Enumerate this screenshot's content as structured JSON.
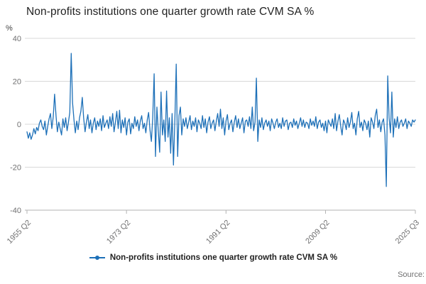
{
  "header": {
    "title": "Non-profits institutions one quarter growth rate CVM SA %",
    "unit_label": "%"
  },
  "legend": {
    "label": "Non-profits institutions one quarter growth rate CVM SA %"
  },
  "footer": {
    "source_label": "Source:"
  },
  "colors": {
    "line": "#1d70b8",
    "grid": "#d9d9d9",
    "axis": "#b3b3b3",
    "tick_text": "#707071",
    "title_text": "#222222"
  },
  "chart_data": {
    "type": "line",
    "title": "Non-profits institutions one quarter growth rate CVM SA %",
    "xlabel": "",
    "ylabel": "%",
    "ylim": [
      -40,
      40
    ],
    "y_ticks": [
      40,
      20,
      0,
      -20,
      -40
    ],
    "x_start": "1955 Q2",
    "x_end": "2025 Q3",
    "frequency": "quarterly",
    "grid": true,
    "legend_position": "bottom",
    "x_ticks": [
      {
        "label": "1955 Q2",
        "index": 0
      },
      {
        "label": "1973 Q2",
        "index": 72
      },
      {
        "label": "1991 Q2",
        "index": 144
      },
      {
        "label": "2009 Q2",
        "index": 216
      },
      {
        "label": "2025 Q3",
        "index": 281
      }
    ],
    "series": [
      {
        "name": "Non-profits institutions one quarter growth rate CVM SA %",
        "values": [
          -3.5,
          -6.5,
          -4.0,
          -7.0,
          -5.0,
          -2.0,
          -4.5,
          -1.5,
          -3.0,
          0.5,
          2.0,
          -1.0,
          -2.5,
          1.5,
          -5.0,
          -1.0,
          2.5,
          5.0,
          -2.0,
          3.5,
          14.0,
          4.0,
          -3.5,
          1.0,
          -2.0,
          -5.0,
          2.5,
          -1.5,
          3.0,
          -3.0,
          1.0,
          5.5,
          33.0,
          10.0,
          2.0,
          -4.0,
          1.5,
          -2.5,
          3.0,
          6.0,
          12.5,
          3.0,
          -3.5,
          1.0,
          4.5,
          -2.0,
          2.0,
          -4.0,
          0.5,
          3.0,
          -2.5,
          1.5,
          -1.0,
          2.5,
          -3.0,
          4.0,
          -1.5,
          0.5,
          2.0,
          -2.0,
          3.5,
          -1.0,
          5.0,
          -3.5,
          1.0,
          6.0,
          -2.0,
          6.5,
          -4.0,
          2.0,
          -1.5,
          3.0,
          -5.0,
          1.0,
          2.5,
          -4.5,
          0.5,
          -2.0,
          3.5,
          -1.0,
          2.0,
          -3.0,
          1.5,
          4.0,
          -2.0,
          0.5,
          -4.0,
          2.0,
          5.5,
          -2.5,
          -8.0,
          3.0,
          23.5,
          -15.0,
          8.0,
          -3.0,
          -13.0,
          15.0,
          -5.0,
          2.0,
          -8.0,
          15.5,
          -6.0,
          3.0,
          -13.5,
          5.0,
          -19.0,
          2.0,
          28.0,
          -15.0,
          4.0,
          8.0,
          -5.0,
          2.5,
          -1.0,
          3.0,
          -2.0,
          1.0,
          4.0,
          -2.5,
          1.5,
          -1.0,
          3.0,
          -3.5,
          2.0,
          0.5,
          -2.0,
          4.0,
          -1.5,
          2.5,
          -4.0,
          1.0,
          3.5,
          -2.0,
          0.5,
          2.0,
          -3.0,
          1.5,
          5.0,
          -1.0,
          7.0,
          -2.0,
          3.0,
          -5.0,
          1.5,
          4.5,
          -2.5,
          0.5,
          2.0,
          -3.5,
          1.0,
          4.0,
          -1.5,
          2.5,
          -2.0,
          0.5,
          3.0,
          -4.0,
          1.5,
          2.0,
          -1.0,
          3.5,
          -2.0,
          8.0,
          -3.0,
          1.0,
          21.5,
          -8.0,
          2.0,
          -1.5,
          3.0,
          -2.5,
          0.5,
          2.0,
          -1.0,
          1.5,
          -3.0,
          2.5,
          0.5,
          -2.0,
          1.0,
          2.5,
          -1.5,
          0.5,
          -2.0,
          3.0,
          -1.0,
          1.5,
          2.0,
          -2.5,
          0.5,
          1.0,
          -1.5,
          2.5,
          -0.5,
          1.5,
          -2.0,
          0.5,
          3.0,
          -1.0,
          2.0,
          -1.5,
          1.0,
          0.5,
          -2.0,
          2.5,
          -0.5,
          1.5,
          -1.0,
          3.5,
          -2.0,
          1.0,
          2.0,
          -1.5,
          0.5,
          -3.0,
          1.5,
          -4.0,
          2.0,
          0.5,
          -1.0,
          2.5,
          -2.0,
          5.0,
          -3.0,
          1.5,
          4.5,
          -1.0,
          -5.0,
          2.0,
          0.5,
          -2.5,
          3.0,
          -1.5,
          1.0,
          5.5,
          -2.0,
          0.5,
          -5.0,
          2.5,
          6.0,
          -1.5,
          1.0,
          -3.0,
          2.0,
          0.5,
          -2.5,
          1.5,
          -6.0,
          3.0,
          1.0,
          -2.0,
          4.0,
          7.0,
          -1.5,
          2.0,
          -3.5,
          1.0,
          2.5,
          -5.0,
          -29.0,
          22.5,
          3.0,
          -4.0,
          15.0,
          -6.0,
          2.5,
          -1.5,
          3.5,
          -2.0,
          1.0,
          2.0,
          -1.0,
          0.5,
          2.5,
          -2.0,
          1.5,
          0.5,
          -1.0,
          2.0,
          1.0,
          2.0
        ]
      }
    ]
  }
}
